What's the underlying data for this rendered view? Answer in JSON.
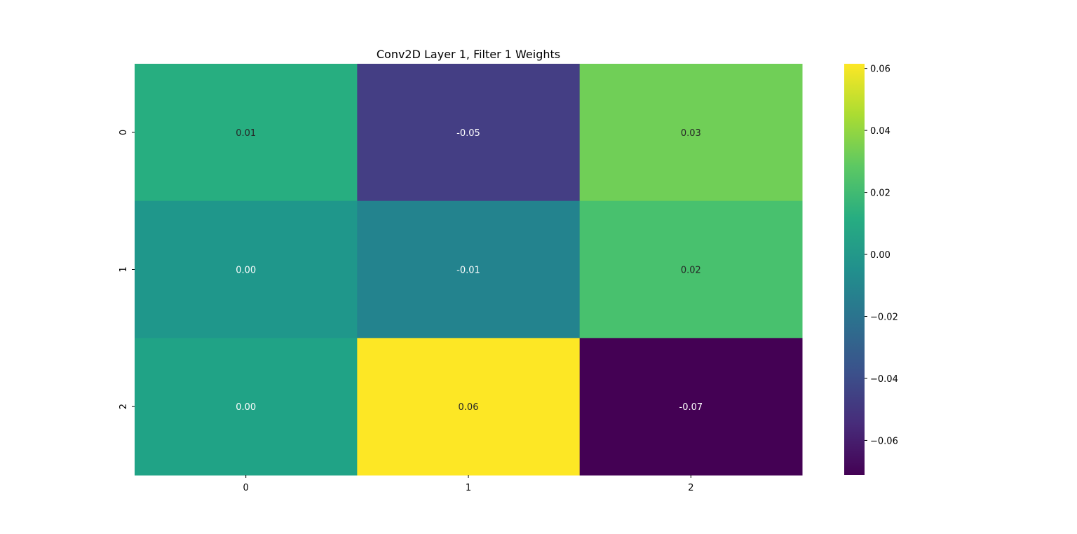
{
  "chart_data": {
    "type": "heatmap",
    "title": "Conv2D Layer 1, Filter 1 Weights",
    "xlabel": "",
    "ylabel": "",
    "x_categories": [
      "0",
      "1",
      "2"
    ],
    "y_categories": [
      "0",
      "1",
      "2"
    ],
    "values": [
      [
        0.01,
        -0.05,
        0.03
      ],
      [
        0.0,
        -0.01,
        0.02
      ],
      [
        0.0,
        0.06,
        -0.07
      ]
    ],
    "cell_labels": [
      [
        "0.01",
        "-0.05",
        "0.03"
      ],
      [
        "0.00",
        "-0.01",
        "0.02"
      ],
      [
        "0.00",
        "0.06",
        "-0.07"
      ]
    ],
    "colormap": "viridis",
    "color_range": [
      -0.0712,
      0.0615
    ],
    "colorbar_ticks": [
      0.06,
      0.04,
      0.02,
      0.0,
      -0.02,
      -0.04,
      -0.06
    ],
    "colorbar_tick_labels": [
      "0.06",
      "0.04",
      "0.02",
      "0.00",
      "−0.02",
      "−0.04",
      "−0.06"
    ],
    "cell_colors": [
      [
        "#27ae80",
        "#443e84",
        "#70cf57"
      ],
      [
        "#1f978b",
        "#23838e",
        "#48c16e"
      ],
      [
        "#20a386",
        "#fde725",
        "#440154"
      ]
    ]
  }
}
